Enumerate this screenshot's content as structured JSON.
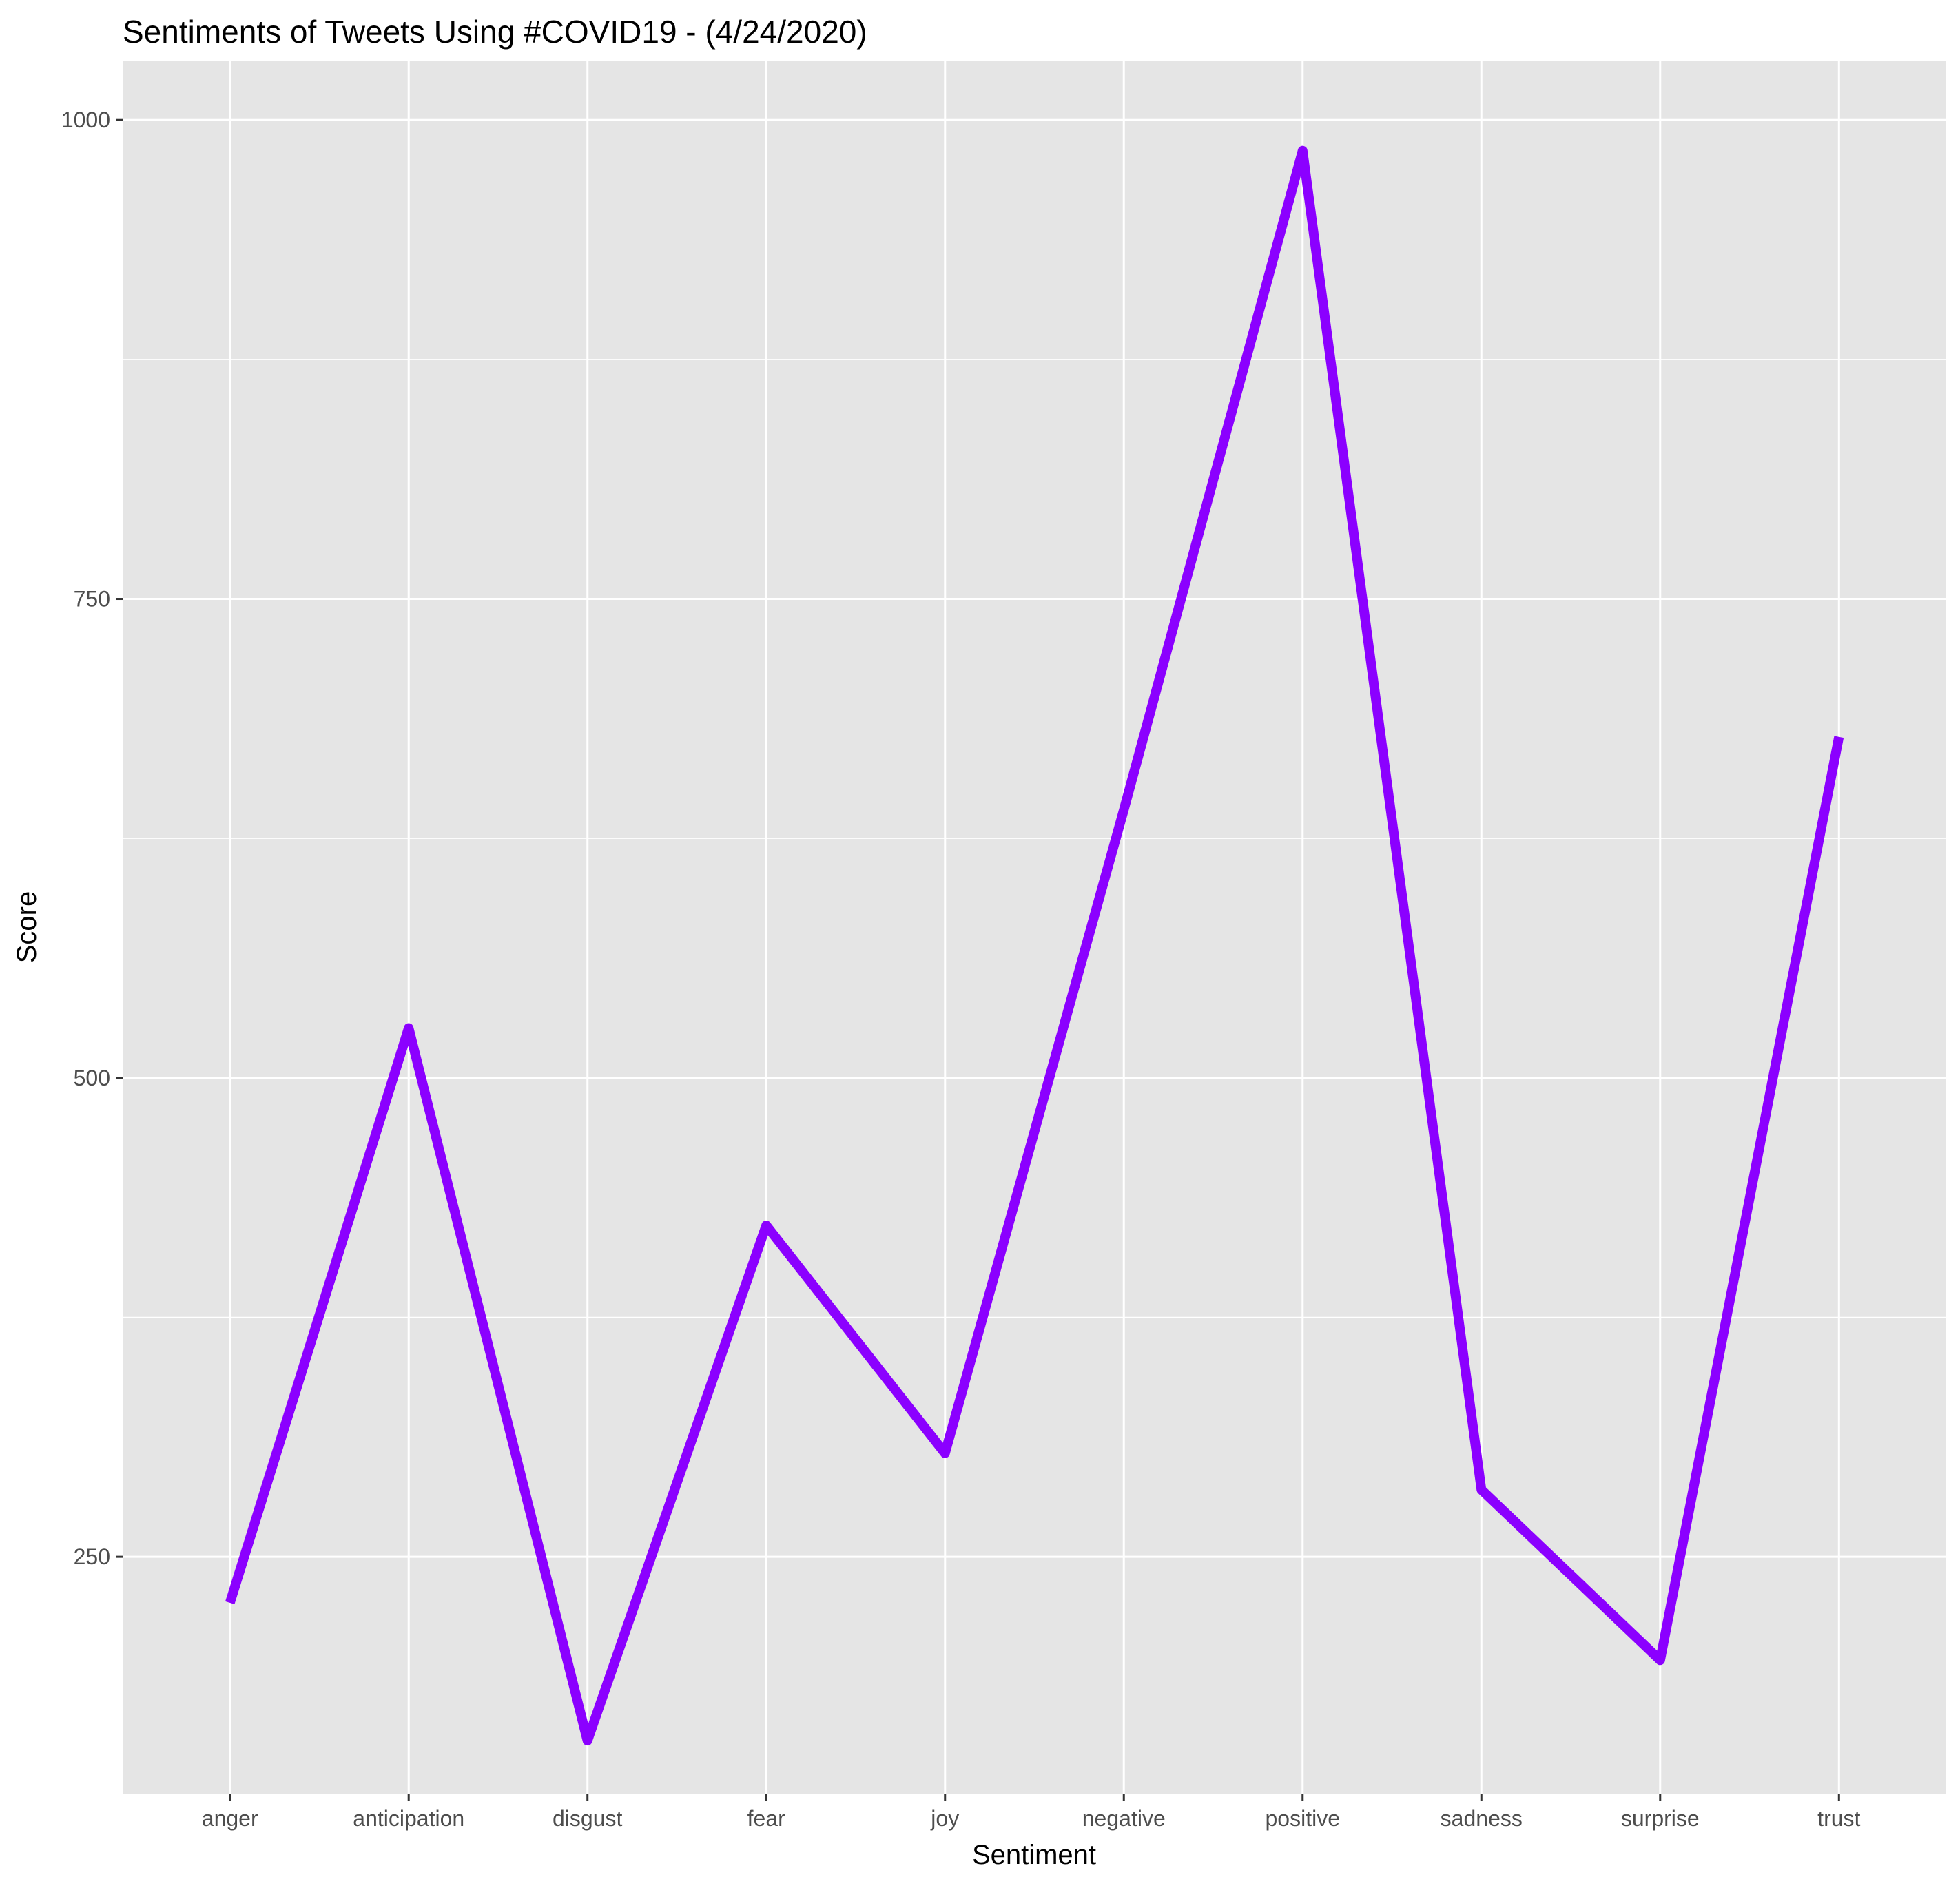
{
  "chart_data": {
    "type": "line",
    "title": "Sentiments of Tweets Using #COVID19 - (4/24/2020)",
    "xlabel": "Sentiment",
    "ylabel": "Score",
    "categories": [
      "anger",
      "anticipation",
      "disgust",
      "fear",
      "joy",
      "negative",
      "positive",
      "sadness",
      "surprise",
      "trust"
    ],
    "values": [
      226,
      526,
      154,
      423,
      304,
      640,
      984,
      285,
      196,
      678
    ],
    "ylim": [
      126,
      1031
    ],
    "yticks": [
      250,
      500,
      750,
      1000
    ],
    "grid": true,
    "legend": "none",
    "line_color": "#8B00FF",
    "panel_color": "#E5E5E5",
    "grid_color": "#FFFFFF"
  }
}
